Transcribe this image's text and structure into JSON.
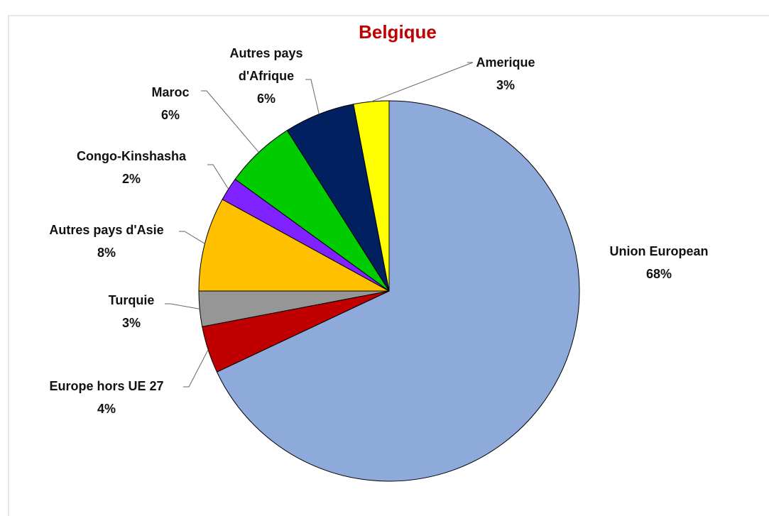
{
  "chart_data": {
    "type": "pie",
    "title": "Belgique",
    "categories": [
      "Union European",
      "Europe hors UE 27",
      "Turquie",
      "Autres pays d'Asie",
      "Congo-Kinshasha",
      "Maroc",
      "Autres pays d'Afrique",
      "Amerique"
    ],
    "values": [
      68,
      4,
      3,
      8,
      2,
      6,
      6,
      3
    ],
    "value_labels": [
      "68%",
      "4%",
      "3%",
      "8%",
      "2%",
      "6%",
      "6%",
      "3%"
    ],
    "colors": [
      "#8eaadb",
      "#c00000",
      "#969696",
      "#ffc000",
      "#7f22ff",
      "#00cc00",
      "#002060",
      "#ffff00"
    ]
  }
}
